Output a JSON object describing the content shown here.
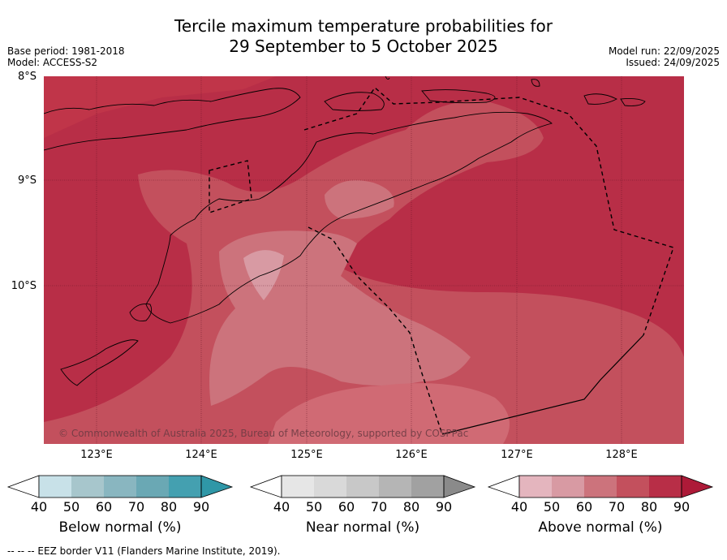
{
  "title_line1": "Tercile maximum temperature probabilities for",
  "title_line2": "29 September to 5 October 2025",
  "meta_left": {
    "base_period": "Base period: 1981-2018",
    "model": "Model: ACCESS-S2"
  },
  "meta_right": {
    "model_run": "Model run: 22/09/2025",
    "issued": "Issued: 24/09/2025"
  },
  "lat_labels": [
    "8°S",
    "9°S",
    "10°S"
  ],
  "lon_labels": [
    "123°E",
    "124°E",
    "125°E",
    "126°E",
    "127°E",
    "128°E"
  ],
  "copyright": "© Commonwealth of Australia 2025, Bureau of Meteorology, supported by COSPPac",
  "colorbars": [
    {
      "label": "Below normal (%)",
      "ticks": [
        "40",
        "50",
        "60",
        "70",
        "80",
        "90"
      ],
      "colors": [
        "#ffffff",
        "#c8e1e8",
        "#a7c6cc",
        "#89b6c0",
        "#6aa8b4",
        "#44a0b0",
        "#2f97a7"
      ]
    },
    {
      "label": "Near normal (%)",
      "ticks": [
        "40",
        "50",
        "60",
        "70",
        "80",
        "90"
      ],
      "colors": [
        "#ffffff",
        "#e6e6e6",
        "#d9d9d9",
        "#c8c8c8",
        "#b5b5b5",
        "#a1a1a1",
        "#8a8a8a"
      ]
    },
    {
      "label": "Above normal (%)",
      "ticks": [
        "40",
        "50",
        "60",
        "70",
        "80",
        "90"
      ],
      "colors": [
        "#ffffff",
        "#e4b5be",
        "#d89aa3",
        "#cc737c",
        "#c3505d",
        "#b82e47",
        "#ad1a38"
      ]
    }
  ],
  "footer": "--  --  -- EEZ border V11 (Flanders Marine Institute, 2019)."
}
